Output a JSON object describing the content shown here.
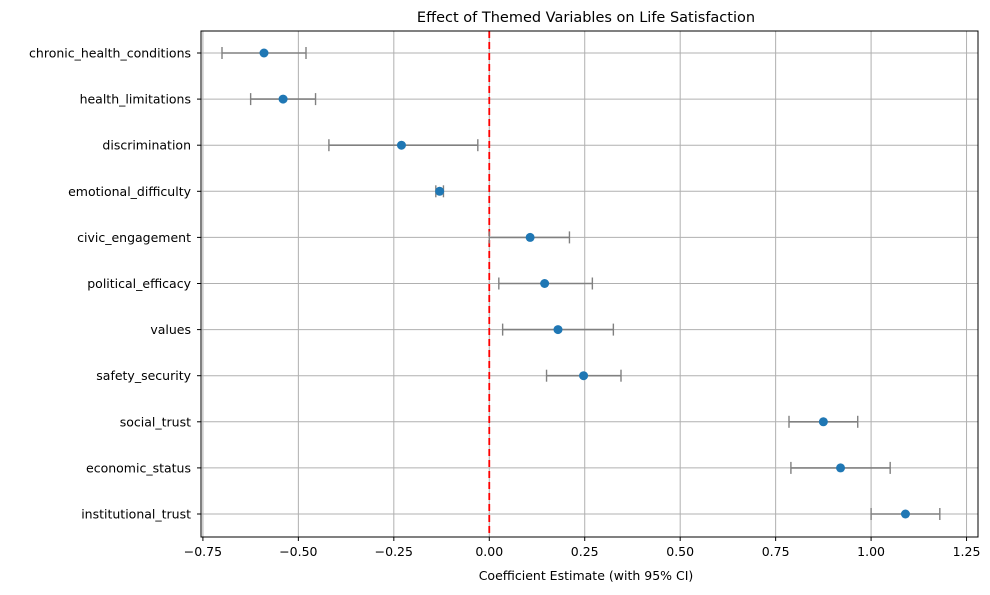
{
  "chart_data": {
    "type": "scatter",
    "title": "Effect of Themed Variables on Life Satisfaction",
    "xlabel": "Coefficient Estimate (with 95% CI)",
    "ylabel": "",
    "xlim": [
      -0.755,
      1.28
    ],
    "xticks": [
      -0.75,
      -0.5,
      -0.25,
      0.0,
      0.25,
      0.5,
      0.75,
      1.0,
      1.25
    ],
    "xtick_labels": [
      "−0.75",
      "−0.50",
      "−0.25",
      "0.00",
      "0.25",
      "0.50",
      "0.75",
      "1.00",
      "1.25"
    ],
    "grid": true,
    "reference_line": {
      "x": 0.0,
      "color": "#ff0000",
      "style": "dashed"
    },
    "marker_color": "#1f77b4",
    "errorbar_color": "#808080",
    "categories": [
      "chronic_health_conditions",
      "health_limitations",
      "discrimination",
      "emotional_difficulty",
      "civic_engagement",
      "political_efficacy",
      "values",
      "safety_security",
      "social_trust",
      "economic_status",
      "institutional_trust"
    ],
    "estimates": [
      -0.59,
      -0.54,
      -0.23,
      -0.13,
      0.107,
      0.145,
      0.18,
      0.247,
      0.875,
      0.92,
      1.09
    ],
    "ci_lower": [
      -0.7,
      -0.625,
      -0.42,
      -0.14,
      0.0,
      0.025,
      0.035,
      0.15,
      0.785,
      0.79,
      1.0
    ],
    "ci_upper": [
      -0.48,
      -0.455,
      -0.03,
      -0.12,
      0.21,
      0.27,
      0.325,
      0.345,
      0.965,
      1.05,
      1.18
    ]
  }
}
